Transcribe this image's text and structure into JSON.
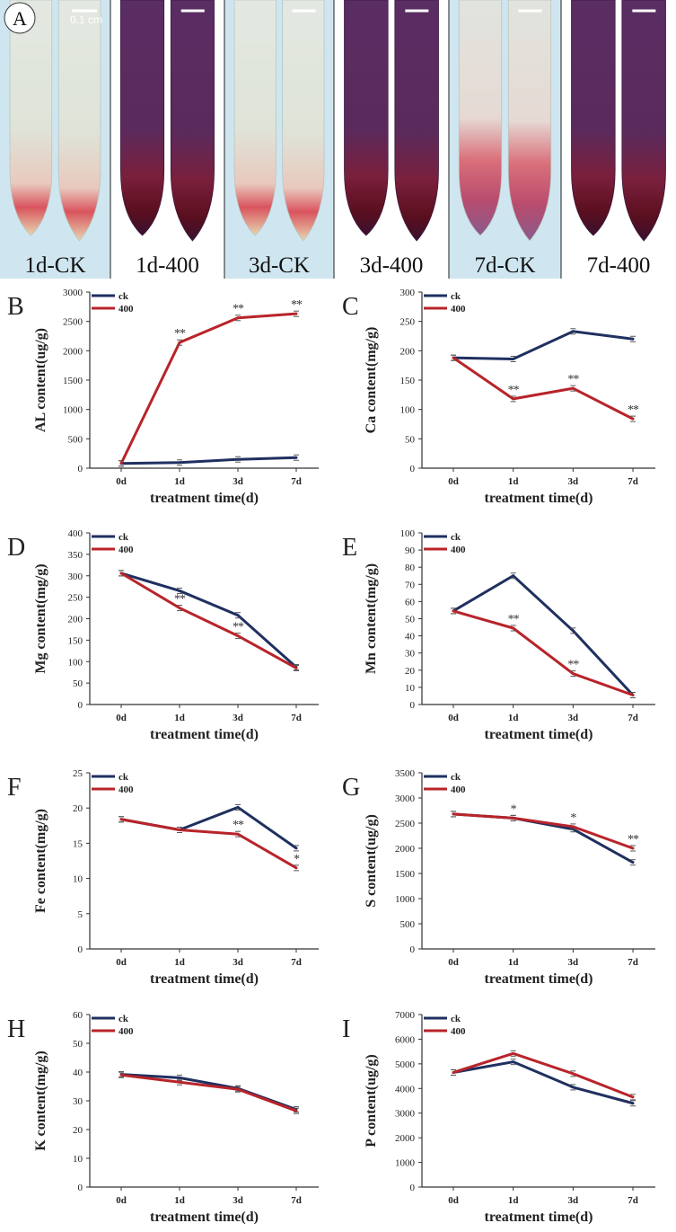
{
  "panel_a": {
    "letter": "A",
    "scale_label": "0.1 cm",
    "samples": [
      "1d-CK",
      "1d-400",
      "3d-CK",
      "3d-400",
      "7d-CK",
      "7d-400"
    ],
    "colors": {
      "background": "#cfe6f0",
      "ck_tissue": "#dde3dc",
      "treated_tissue": "#5b2e63",
      "stain_red": "#c6303a"
    }
  },
  "chart_data": [
    {
      "type": "line",
      "letter": "B",
      "title": "",
      "ylabel": "AL content(ug/g)",
      "xlabel": "treatment time(d)",
      "categories": [
        "0d",
        "1d",
        "3d",
        "7d"
      ],
      "ylim": [
        0,
        3000
      ],
      "yticks": [
        0,
        500,
        1000,
        1500,
        2000,
        2500,
        3000
      ],
      "legend": "top-left",
      "series": [
        {
          "name": "ck",
          "color": "#1f3060",
          "values": [
            80,
            95,
            150,
            180
          ]
        },
        {
          "name": "400",
          "color": "#b8242a",
          "values": [
            80,
            2140,
            2560,
            2630
          ]
        }
      ],
      "annotations": [
        {
          "category": "1d",
          "value": 2140,
          "text": "**"
        },
        {
          "category": "3d",
          "value": 2560,
          "text": "**"
        },
        {
          "category": "7d",
          "value": 2630,
          "text": "**"
        }
      ]
    },
    {
      "type": "line",
      "letter": "C",
      "title": "",
      "ylabel": "Ca content(mg/g)",
      "xlabel": "treatment time(d)",
      "categories": [
        "0d",
        "1d",
        "3d",
        "7d"
      ],
      "ylim": [
        0,
        300
      ],
      "yticks": [
        0,
        50,
        100,
        150,
        200,
        250,
        300
      ],
      "legend": "top-left",
      "series": [
        {
          "name": "ck",
          "color": "#1f3060",
          "values": [
            188,
            186,
            233,
            220
          ]
        },
        {
          "name": "400",
          "color": "#b8242a",
          "values": [
            188,
            118,
            136,
            84
          ]
        }
      ],
      "annotations": [
        {
          "category": "1d",
          "value": 118,
          "text": "**"
        },
        {
          "category": "3d",
          "value": 136,
          "text": "**"
        },
        {
          "category": "7d",
          "value": 84,
          "text": "**"
        }
      ]
    },
    {
      "type": "line",
      "letter": "D",
      "title": "",
      "ylabel": "Mg content(mg/g)",
      "xlabel": "treatment time(d)",
      "categories": [
        "0d",
        "1d",
        "3d",
        "7d"
      ],
      "ylim": [
        0,
        400
      ],
      "yticks": [
        0,
        50,
        100,
        150,
        200,
        250,
        300,
        350,
        400
      ],
      "legend": "top-left",
      "series": [
        {
          "name": "ck",
          "color": "#1f3060",
          "values": [
            306,
            265,
            208,
            87
          ]
        },
        {
          "name": "400",
          "color": "#b8242a",
          "values": [
            306,
            225,
            160,
            85
          ]
        }
      ],
      "annotations": [
        {
          "category": "1d",
          "value": 225,
          "text": "**"
        },
        {
          "category": "3d",
          "value": 160,
          "text": "**"
        }
      ]
    },
    {
      "type": "line",
      "letter": "E",
      "title": "",
      "ylabel": "Mn content(mg/g)",
      "xlabel": "treatment time(d)",
      "categories": [
        "0d",
        "1d",
        "3d",
        "7d"
      ],
      "ylim": [
        0,
        100
      ],
      "yticks": [
        0,
        10,
        20,
        30,
        40,
        50,
        60,
        70,
        80,
        90,
        100
      ],
      "legend": "top-left",
      "series": [
        {
          "name": "ck",
          "color": "#1f3060",
          "values": [
            54.5,
            75,
            43,
            5.5
          ]
        },
        {
          "name": "400",
          "color": "#b8242a",
          "values": [
            54.5,
            44.5,
            18,
            5.5
          ]
        }
      ],
      "annotations": [
        {
          "category": "1d",
          "value": 44.5,
          "text": "**"
        },
        {
          "category": "3d",
          "value": 18,
          "text": "**"
        }
      ]
    },
    {
      "type": "line",
      "letter": "F",
      "title": "",
      "ylabel": "Fe content(mg/g)",
      "xlabel": "treatment time(d)",
      "categories": [
        "0d",
        "1d",
        "3d",
        "7d"
      ],
      "ylim": [
        0,
        25
      ],
      "yticks": [
        0,
        5,
        10,
        15,
        20,
        25
      ],
      "legend": "top-left",
      "series": [
        {
          "name": "ck",
          "color": "#1f3060",
          "values": [
            18.4,
            16.9,
            20.1,
            14.3
          ]
        },
        {
          "name": "400",
          "color": "#b8242a",
          "values": [
            18.4,
            16.9,
            16.3,
            11.5
          ]
        }
      ],
      "annotations": [
        {
          "category": "3d",
          "value": 16.3,
          "text": "**"
        },
        {
          "category": "7d",
          "value": 11.5,
          "text": "*"
        }
      ]
    },
    {
      "type": "line",
      "letter": "G",
      "title": "",
      "ylabel": "S content(ug/g)",
      "xlabel": "treatment time(d)",
      "categories": [
        "0d",
        "1d",
        "3d",
        "7d"
      ],
      "ylim": [
        0,
        3500
      ],
      "yticks": [
        0,
        500,
        1000,
        1500,
        2000,
        2500,
        3000,
        3500
      ],
      "legend": "top-left",
      "series": [
        {
          "name": "ck",
          "color": "#1f3060",
          "values": [
            2680,
            2600,
            2380,
            1720
          ]
        },
        {
          "name": "400",
          "color": "#b8242a",
          "values": [
            2680,
            2600,
            2430,
            2000
          ]
        }
      ],
      "annotations": [
        {
          "category": "1d",
          "value": 2600,
          "text": "*"
        },
        {
          "category": "3d",
          "value": 2430,
          "text": "*"
        },
        {
          "category": "7d",
          "value": 2000,
          "text": "**"
        }
      ]
    },
    {
      "type": "line",
      "letter": "H",
      "title": "",
      "ylabel": "K content(mg/g)",
      "xlabel": "treatment time(d)",
      "categories": [
        "0d",
        "1d",
        "3d",
        "7d"
      ],
      "ylim": [
        0,
        60
      ],
      "yticks": [
        0,
        10,
        20,
        30,
        40,
        50,
        60
      ],
      "legend": "top-left",
      "series": [
        {
          "name": "ck",
          "color": "#1f3060",
          "values": [
            39.2,
            38,
            34.3,
            27
          ]
        },
        {
          "name": "400",
          "color": "#b8242a",
          "values": [
            39,
            36.5,
            34,
            26.5
          ]
        }
      ],
      "annotations": []
    },
    {
      "type": "line",
      "letter": "I",
      "title": "",
      "ylabel": "P content(ug/g)",
      "xlabel": "treatment time(d)",
      "categories": [
        "0d",
        "1d",
        "3d",
        "7d"
      ],
      "ylim": [
        0,
        7000
      ],
      "yticks": [
        0,
        1000,
        2000,
        3000,
        4000,
        5000,
        6000,
        7000
      ],
      "legend": "top-left",
      "series": [
        {
          "name": "ck",
          "color": "#1f3060",
          "values": [
            4650,
            5080,
            4050,
            3400
          ]
        },
        {
          "name": "400",
          "color": "#b8242a",
          "values": [
            4650,
            5420,
            4600,
            3650
          ]
        }
      ],
      "annotations": []
    }
  ]
}
